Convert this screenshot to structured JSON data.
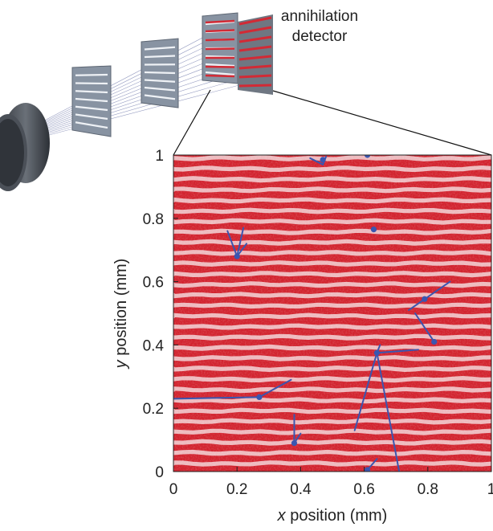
{
  "detector_label": [
    "annihilation",
    "detector"
  ],
  "axes": {
    "xlabel_var": "x",
    "xlabel_rest": " position (mm)",
    "ylabel_var": "y",
    "ylabel_rest": " position (mm)",
    "xticks": [
      "0",
      "0.2",
      "0.4",
      "0.6",
      "0.8",
      "1"
    ],
    "yticks": [
      "0",
      "0.2",
      "0.4",
      "0.6",
      "0.8",
      "1"
    ],
    "xlim": [
      0,
      1
    ],
    "ylim": [
      0,
      1
    ]
  },
  "colors": {
    "plot_background": "#d2242f",
    "stripe": "#f3d5d7",
    "track": "#3a56b0",
    "grating": "#8893a2"
  },
  "tracks": [
    {
      "center": [
        0.47,
        0.985
      ],
      "segments": [
        [
          [
            0.43,
            0.99
          ],
          [
            0.47,
            0.97
          ]
        ],
        [
          [
            0.47,
            0.97
          ],
          [
            0.48,
            0.995
          ]
        ]
      ]
    },
    {
      "center": [
        0.61,
        1.0
      ],
      "segments": [
        [
          [
            0.61,
            1.0
          ],
          [
            0.6,
            1.03
          ]
        ]
      ]
    },
    {
      "center": [
        0.63,
        0.765
      ],
      "segments": []
    },
    {
      "center": [
        0.2,
        0.68
      ],
      "segments": [
        [
          [
            0.2,
            0.68
          ],
          [
            0.17,
            0.76
          ]
        ],
        [
          [
            0.2,
            0.68
          ],
          [
            0.22,
            0.77
          ]
        ],
        [
          [
            0.2,
            0.68
          ],
          [
            0.23,
            0.72
          ]
        ]
      ]
    },
    {
      "center": [
        0.79,
        0.545
      ],
      "segments": [
        [
          [
            0.74,
            0.51
          ],
          [
            0.87,
            0.6
          ]
        ]
      ]
    },
    {
      "center": [
        0.82,
        0.41
      ],
      "segments": [
        [
          [
            0.82,
            0.41
          ],
          [
            0.76,
            0.5
          ]
        ]
      ]
    },
    {
      "center": [
        0.64,
        0.375
      ],
      "segments": [
        [
          [
            0.64,
            0.375
          ],
          [
            0.57,
            0.13
          ]
        ],
        [
          [
            0.64,
            0.375
          ],
          [
            0.71,
            0.0
          ]
        ],
        [
          [
            0.64,
            0.375
          ],
          [
            0.77,
            0.385
          ]
        ],
        [
          [
            0.64,
            0.375
          ],
          [
            0.65,
            0.4
          ]
        ]
      ]
    },
    {
      "center": [
        0.27,
        0.235
      ],
      "segments": [
        [
          [
            0.0,
            0.23
          ],
          [
            0.27,
            0.235
          ]
        ],
        [
          [
            0.27,
            0.235
          ],
          [
            0.37,
            0.29
          ]
        ]
      ]
    },
    {
      "center": [
        0.38,
        0.09
      ],
      "segments": [
        [
          [
            0.38,
            0.09
          ],
          [
            0.38,
            0.18
          ]
        ],
        [
          [
            0.38,
            0.09
          ],
          [
            0.4,
            0.12
          ]
        ]
      ]
    },
    {
      "center": [
        0.61,
        0.005
      ],
      "segments": [
        [
          [
            0.61,
            0.005
          ],
          [
            0.64,
            0.04
          ]
        ]
      ]
    }
  ]
}
